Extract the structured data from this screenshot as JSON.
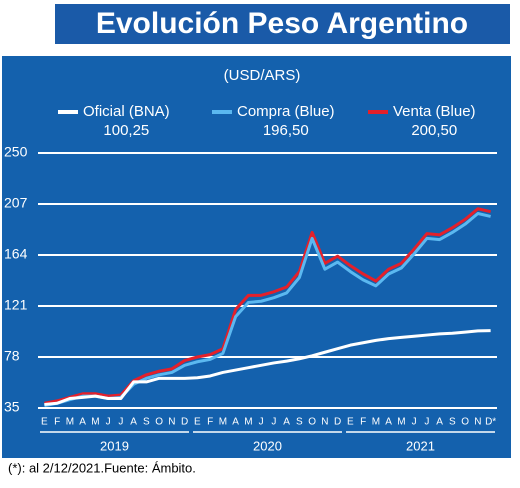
{
  "chart_data": {
    "type": "line",
    "title": "Evolución Peso Argentino",
    "subtitle": "(USD/ARS)",
    "footnote": "(*): al 2/12/2021.Fuente: Ámbito.",
    "categories": [
      "E",
      "F",
      "M",
      "A",
      "M",
      "J",
      "J",
      "A",
      "S",
      "O",
      "N",
      "D",
      "E",
      "F",
      "M",
      "A",
      "M",
      "J",
      "J",
      "A",
      "S",
      "O",
      "N",
      "D",
      "E",
      "F",
      "M",
      "A",
      "M",
      "J",
      "J",
      "A",
      "S",
      "O",
      "N",
      "D*"
    ],
    "groups": [
      "2019",
      "2020",
      "2021"
    ],
    "series": [
      {
        "name": "Oficial (BNA)",
        "color": "#ffffff",
        "legend_label": "100,25",
        "values": [
          38,
          39,
          43,
          44,
          45,
          43,
          43,
          57,
          57,
          60,
          60,
          60,
          60.5,
          62,
          65,
          67,
          69,
          71,
          73,
          74.5,
          76.5,
          79,
          82,
          85,
          88,
          90,
          92,
          93.5,
          94.5,
          95.5,
          96.5,
          97.5,
          98,
          99,
          100,
          100.25
        ]
      },
      {
        "name": "Compra (Blue)",
        "color": "#5bb8f0",
        "legend_label": "196,50",
        "values": [
          37,
          39,
          42,
          45,
          45,
          43,
          44,
          55,
          60,
          63,
          65,
          71,
          74,
          76,
          81,
          112,
          124,
          125,
          128,
          132,
          145,
          178,
          152,
          158,
          150,
          143,
          138,
          148,
          153,
          165,
          178,
          177,
          183,
          190,
          199,
          196.5
        ]
      },
      {
        "name": "Venta (Blue)",
        "color": "#e4202a",
        "legend_label": "200,50",
        "values": [
          39,
          41,
          44,
          47,
          47,
          45,
          46,
          58,
          63,
          66,
          68,
          75,
          78,
          80,
          85,
          118,
          130,
          130,
          133,
          137,
          150,
          183,
          157,
          163,
          155,
          148,
          142,
          152,
          157,
          169,
          182,
          181,
          187,
          194,
          203,
          200.5
        ]
      }
    ],
    "ylim": [
      35,
      250
    ],
    "yticks": [
      35,
      78,
      121,
      164,
      207,
      250
    ],
    "grid": true
  }
}
